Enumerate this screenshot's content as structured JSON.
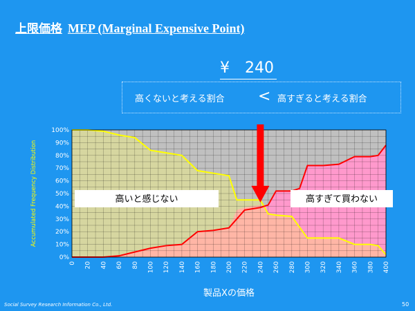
{
  "header": {
    "title_ja": "上限価格",
    "title_en": "MEP (Marginal Expensive Point)",
    "price": "¥　240"
  },
  "comparison": {
    "left": "高くないと考える割合",
    "symbol": "<",
    "right": "高すぎると考える割合"
  },
  "footer": {
    "company": "Social Survey Research Information Co., Ltd.",
    "page": "50"
  },
  "colors": {
    "background": "#1E96F0",
    "not_expensive_line": "#FFFF00",
    "not_expensive_fill": "#D6D6A0",
    "too_expensive_line": "#FF0000",
    "too_expensive_fill": "#FF99CC",
    "overlap_fill": "#FFB6A6",
    "grid_bg": "#C0C0C0",
    "arrow": "#FF0000"
  },
  "chart_data": {
    "type": "area",
    "title": "",
    "xlabel": "製品Xの価格",
    "ylabel": "Accumulated Frequency Distribution",
    "xlim": [
      0,
      400
    ],
    "ylim": [
      0,
      100
    ],
    "x_ticks": [
      0,
      20,
      40,
      60,
      80,
      100,
      120,
      140,
      160,
      180,
      200,
      220,
      240,
      260,
      280,
      300,
      320,
      340,
      360,
      380,
      400
    ],
    "y_ticks": [
      "0%",
      "10%",
      "20%",
      "30%",
      "40%",
      "50%",
      "60%",
      "70%",
      "80%",
      "90%",
      "100%"
    ],
    "grid": true,
    "series": [
      {
        "name": "高いと感じない",
        "points": [
          [
            0,
            100
          ],
          [
            20,
            100
          ],
          [
            40,
            99
          ],
          [
            60,
            96
          ],
          [
            80,
            94
          ],
          [
            100,
            84
          ],
          [
            120,
            82
          ],
          [
            140,
            80
          ],
          [
            160,
            68
          ],
          [
            180,
            66
          ],
          [
            200,
            64
          ],
          [
            210,
            45
          ],
          [
            220,
            45
          ],
          [
            240,
            45
          ],
          [
            250,
            34
          ],
          [
            260,
            33
          ],
          [
            280,
            32
          ],
          [
            300,
            15
          ],
          [
            320,
            15
          ],
          [
            340,
            15
          ],
          [
            360,
            10
          ],
          [
            380,
            10
          ],
          [
            390,
            9
          ],
          [
            400,
            2
          ]
        ]
      },
      {
        "name": "高すぎて買わない",
        "points": [
          [
            0,
            0
          ],
          [
            20,
            0
          ],
          [
            40,
            0
          ],
          [
            60,
            1
          ],
          [
            80,
            4
          ],
          [
            100,
            7
          ],
          [
            120,
            9
          ],
          [
            140,
            10
          ],
          [
            160,
            20
          ],
          [
            180,
            21
          ],
          [
            200,
            23
          ],
          [
            220,
            37
          ],
          [
            240,
            39
          ],
          [
            250,
            41
          ],
          [
            260,
            52
          ],
          [
            280,
            52
          ],
          [
            290,
            54
          ],
          [
            300,
            72
          ],
          [
            320,
            72
          ],
          [
            340,
            73
          ],
          [
            360,
            79
          ],
          [
            380,
            79
          ],
          [
            390,
            80
          ],
          [
            400,
            88
          ]
        ]
      }
    ],
    "annotation": {
      "x": 240,
      "label": "¥　240"
    }
  }
}
